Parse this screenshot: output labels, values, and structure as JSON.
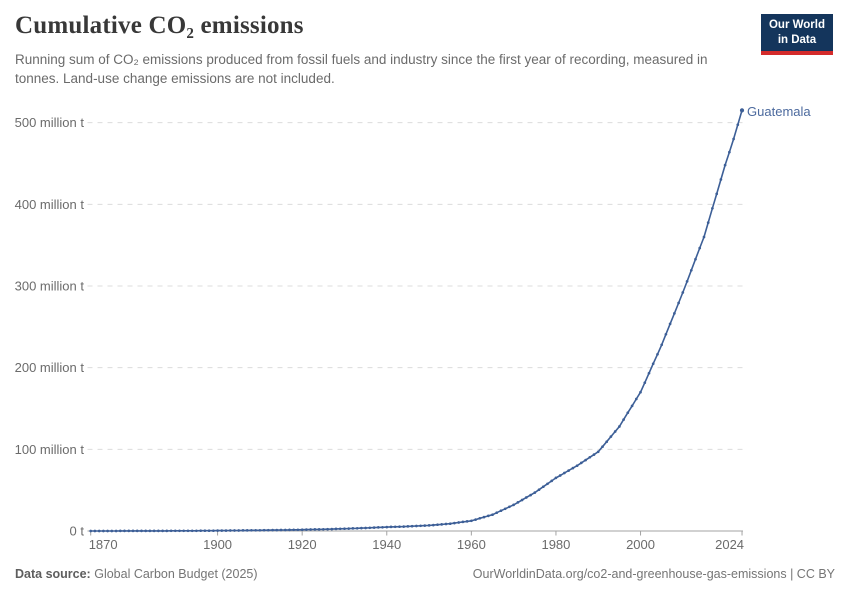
{
  "header": {
    "title": "Cumulative CO₂ emissions",
    "subtitle": "Running sum of CO₂ emissions produced from fossil fuels and industry since the first year of recording, measured in tonnes. Land-use change emissions are not included."
  },
  "logo": {
    "line1": "Our World",
    "line2": "in Data",
    "bg_color": "#14355c",
    "bar_color": "#d42b2b"
  },
  "chart_data": {
    "type": "line",
    "title": "Cumulative CO₂ emissions",
    "unit": "million t",
    "xlabel": "",
    "ylabel": "",
    "xlim": [
      1870,
      2024
    ],
    "ylim": [
      0,
      515
    ],
    "grid": "dashed-horizontal",
    "x_ticks": [
      1870,
      1900,
      1920,
      1940,
      1960,
      1980,
      2000,
      2024
    ],
    "y_ticks": [
      0,
      100,
      200,
      300,
      400,
      500
    ],
    "y_tick_labels": [
      "0 t",
      "100 million t",
      "200 million t",
      "300 million t",
      "400 million t",
      "500 million t"
    ],
    "series": [
      {
        "name": "Guatemala",
        "label_color": "#4c6a9e",
        "line_color": "#3d5f97",
        "points": [
          [
            1870,
            0.02
          ],
          [
            1875,
            0.05
          ],
          [
            1880,
            0.09
          ],
          [
            1885,
            0.14
          ],
          [
            1890,
            0.2
          ],
          [
            1895,
            0.3
          ],
          [
            1900,
            0.45
          ],
          [
            1905,
            0.65
          ],
          [
            1910,
            0.9
          ],
          [
            1915,
            1.2
          ],
          [
            1920,
            1.6
          ],
          [
            1925,
            2.1
          ],
          [
            1930,
            2.8
          ],
          [
            1935,
            3.7
          ],
          [
            1940,
            4.8
          ],
          [
            1945,
            5.6
          ],
          [
            1950,
            6.8
          ],
          [
            1955,
            9
          ],
          [
            1960,
            12.5
          ],
          [
            1965,
            20
          ],
          [
            1970,
            32
          ],
          [
            1975,
            47
          ],
          [
            1980,
            65
          ],
          [
            1985,
            80
          ],
          [
            1990,
            97
          ],
          [
            1995,
            128
          ],
          [
            2000,
            170
          ],
          [
            2005,
            228
          ],
          [
            2010,
            292
          ],
          [
            2015,
            360
          ],
          [
            2020,
            448
          ],
          [
            2022,
            480
          ],
          [
            2024,
            515
          ]
        ]
      }
    ]
  },
  "footer": {
    "source_label": "Data source:",
    "source_value": "Global Carbon Budget (2025)",
    "right_text": "OurWorldinData.org/co2-and-greenhouse-gas-emissions | CC BY"
  },
  "colors": {
    "grid": "#dcdcdc",
    "axis": "#a3a3a3",
    "tick_label": "#6b6b6b"
  }
}
